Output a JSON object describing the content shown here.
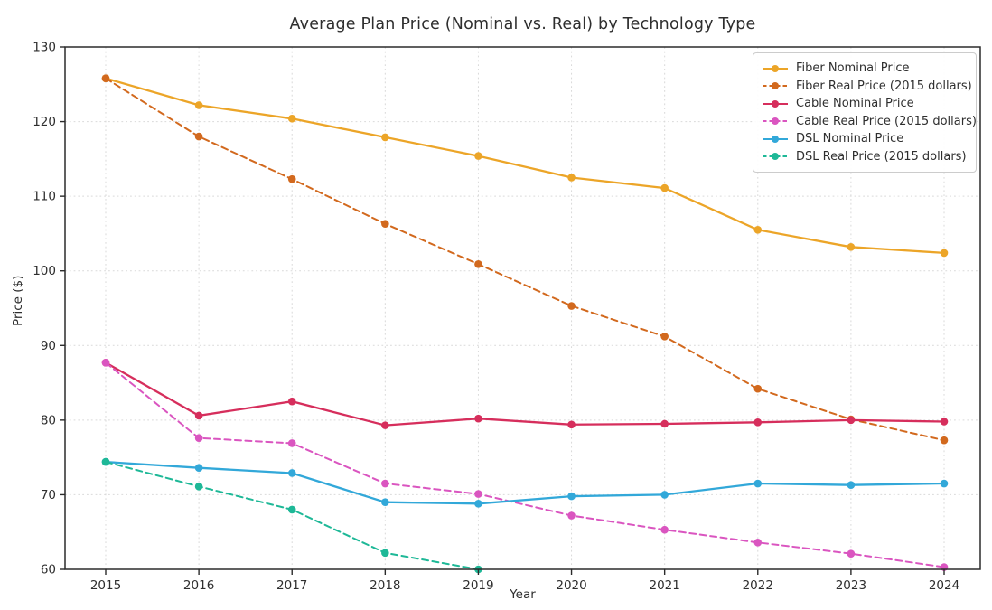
{
  "chart_data": {
    "type": "line",
    "title": "Average Plan Price (Nominal vs. Real) by Technology Type",
    "xlabel": "Year",
    "ylabel": "Price ($)",
    "x": [
      2015,
      2016,
      2017,
      2018,
      2019,
      2020,
      2021,
      2022,
      2023,
      2024
    ],
    "ylim": [
      60,
      130
    ],
    "yticks": [
      60,
      70,
      80,
      90,
      100,
      110,
      120,
      130
    ],
    "grid": true,
    "grid_style": "dotted",
    "legend_position": "upper right",
    "series": [
      {
        "id": "fiber-nominal",
        "name": "Fiber Nominal Price",
        "color": "#ECA528",
        "style": "solid",
        "values": [
          125.8,
          122.2,
          120.4,
          117.9,
          115.4,
          112.5,
          111.1,
          105.5,
          103.2,
          102.4
        ]
      },
      {
        "id": "fiber-real",
        "name": "Fiber Real Price (2015 dollars)",
        "color": "#D2691E",
        "style": "dashed",
        "values": [
          125.8,
          118.0,
          112.3,
          106.3,
          100.9,
          95.3,
          91.2,
          84.2,
          80.1,
          77.3
        ]
      },
      {
        "id": "cable-nominal",
        "name": "Cable Nominal Price",
        "color": "#D62E5C",
        "style": "solid",
        "values": [
          87.7,
          80.6,
          82.5,
          79.3,
          80.2,
          79.4,
          79.5,
          79.7,
          80.0,
          79.8
        ]
      },
      {
        "id": "cable-real",
        "name": "Cable Real Price (2015 dollars)",
        "color": "#DA55C0",
        "style": "dashed",
        "values": [
          87.7,
          77.6,
          76.9,
          71.5,
          70.1,
          67.2,
          65.3,
          63.6,
          62.1,
          60.3
        ]
      },
      {
        "id": "dsl-nominal",
        "name": "DSL Nominal Price",
        "color": "#32A8D9",
        "style": "solid",
        "values": [
          74.4,
          73.6,
          72.9,
          69.0,
          68.8,
          69.8,
          70.0,
          71.5,
          71.3,
          71.5
        ]
      },
      {
        "id": "dsl-real",
        "name": "DSL Real Price (2015 dollars)",
        "color": "#1EB897",
        "style": "dashed",
        "values": [
          74.4,
          71.1,
          68.0,
          62.2,
          60.0,
          null,
          null,
          null,
          null,
          null
        ]
      }
    ]
  }
}
